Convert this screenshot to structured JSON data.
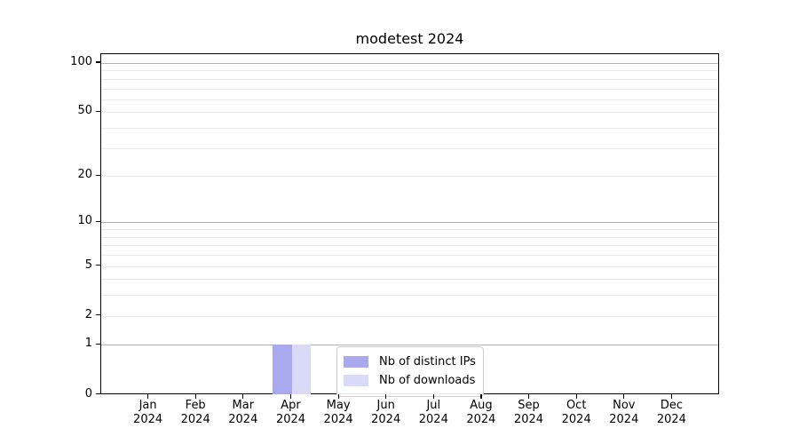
{
  "chart_data": {
    "type": "bar",
    "title": "modetest 2024",
    "categories": [
      "Jan 2024",
      "Feb 2024",
      "Mar 2024",
      "Apr 2024",
      "May 2024",
      "Jun 2024",
      "Jul 2024",
      "Aug 2024",
      "Sep 2024",
      "Oct 2024",
      "Nov 2024",
      "Dec 2024"
    ],
    "series": [
      {
        "name": "Nb of distinct IPs",
        "color": "#a9a9f0",
        "values": [
          0,
          0,
          0,
          1,
          0,
          0,
          0,
          0,
          0,
          0,
          0,
          0
        ]
      },
      {
        "name": "Nb of downloads",
        "color": "#d9d9f8",
        "values": [
          0,
          0,
          0,
          1,
          0,
          0,
          0,
          0,
          0,
          0,
          0,
          0
        ]
      }
    ],
    "xlabel": "",
    "ylabel": "",
    "yscale": "log1p",
    "ylim": [
      0,
      100
    ],
    "y_tick_values": [
      0,
      1,
      2,
      5,
      10,
      20,
      50,
      100
    ],
    "y_major_gridlines": [
      1,
      10,
      100
    ],
    "y_minor_gridlines": [
      2,
      3,
      4,
      5,
      6,
      7,
      8,
      9,
      20,
      30,
      40,
      50,
      60,
      70,
      80,
      90
    ],
    "grid": "on",
    "legend_position": "lower center"
  },
  "style": {
    "background_color": "#ffffff",
    "axis_color": "#000000",
    "major_grid_color": "#b2b2b2",
    "minor_grid_color": "#e9e9e9",
    "legend_border_color": "#cccccc",
    "text_color": "#000000"
  }
}
